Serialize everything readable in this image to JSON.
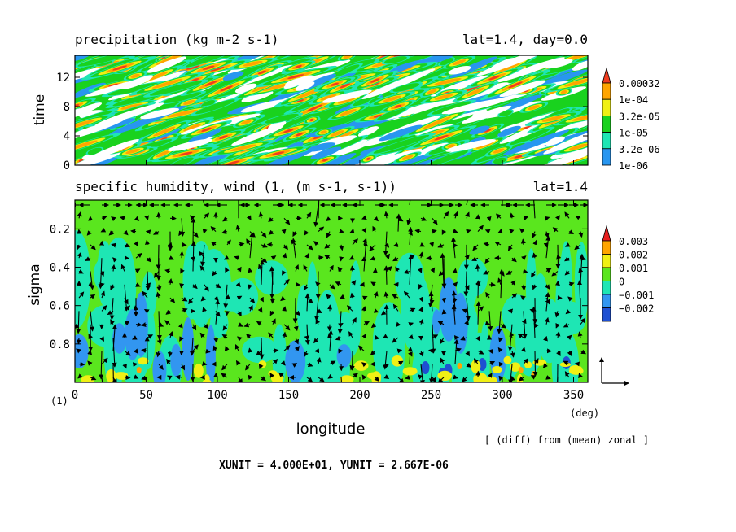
{
  "chart_data": [
    {
      "type": "heatmap",
      "title": "precipitation (kg m-2 s-1)",
      "subtitle": "lat=1.4, day=0.0",
      "ylabel": "time",
      "xlim": [
        0,
        360
      ],
      "ylim": [
        0,
        15
      ],
      "yticks": [
        0,
        4,
        8,
        12
      ],
      "colorbar": {
        "labels": [
          "0.00032",
          "1e-04",
          "3.2e-05",
          "1e-05",
          "3.2e-06",
          "1e-06"
        ],
        "colors": [
          "#f03c1e",
          "#ffa500",
          "#f0f014",
          "#19d21e",
          "#1ee6b4",
          "#2896f0"
        ]
      }
    },
    {
      "type": "heatmap",
      "title": "specific humidity, wind (1, (m s-1, s-1))",
      "subtitle": "lat=1.4",
      "xlabel": "longitude",
      "ylabel": "sigma",
      "xlim": [
        0,
        360
      ],
      "xticks": [
        0,
        50,
        100,
        150,
        200,
        250,
        300,
        350
      ],
      "x_unit_label": "(deg)",
      "y_unit_label": "(1)",
      "ylim": [
        1.0,
        0.05
      ],
      "yticks": [
        0.2,
        0.4,
        0.6,
        0.8
      ],
      "colorbar": {
        "labels": [
          "0.003",
          "0.002",
          "0.001",
          "0",
          "−0.001",
          "−0.002"
        ],
        "colors": [
          "#e61e1e",
          "#ffa500",
          "#f0f014",
          "#5ae61e",
          "#1ee6b4",
          "#3296f0",
          "#1e50d2"
        ]
      },
      "note": "[ (diff) from (mean) zonal ]"
    }
  ],
  "footer": {
    "units": "XUNIT = 4.000E+01, YUNIT = 2.667E-06"
  }
}
